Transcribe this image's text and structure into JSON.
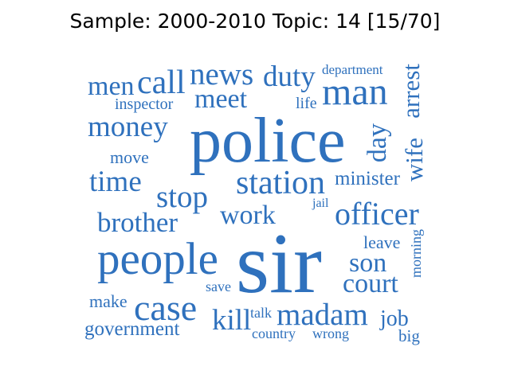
{
  "title": "Sample: 2000-2010 Topic: 14 [15/70]",
  "colors": {
    "word": "#2f71bd",
    "title": "#000000",
    "background": "#ffffff"
  },
  "words": [
    "police",
    "sir",
    "people",
    "man",
    "station",
    "officer",
    "case",
    "madam",
    "court",
    "news",
    "duty",
    "meet",
    "money",
    "stop",
    "time",
    "brother",
    "work",
    "son",
    "kill",
    "men",
    "call",
    "arrest",
    "wife",
    "day",
    "minister",
    "job",
    "government",
    "inspector",
    "move",
    "make",
    "save",
    "talk",
    "country",
    "wrong",
    "big",
    "leave",
    "morning",
    "department",
    "life",
    "jail"
  ]
}
